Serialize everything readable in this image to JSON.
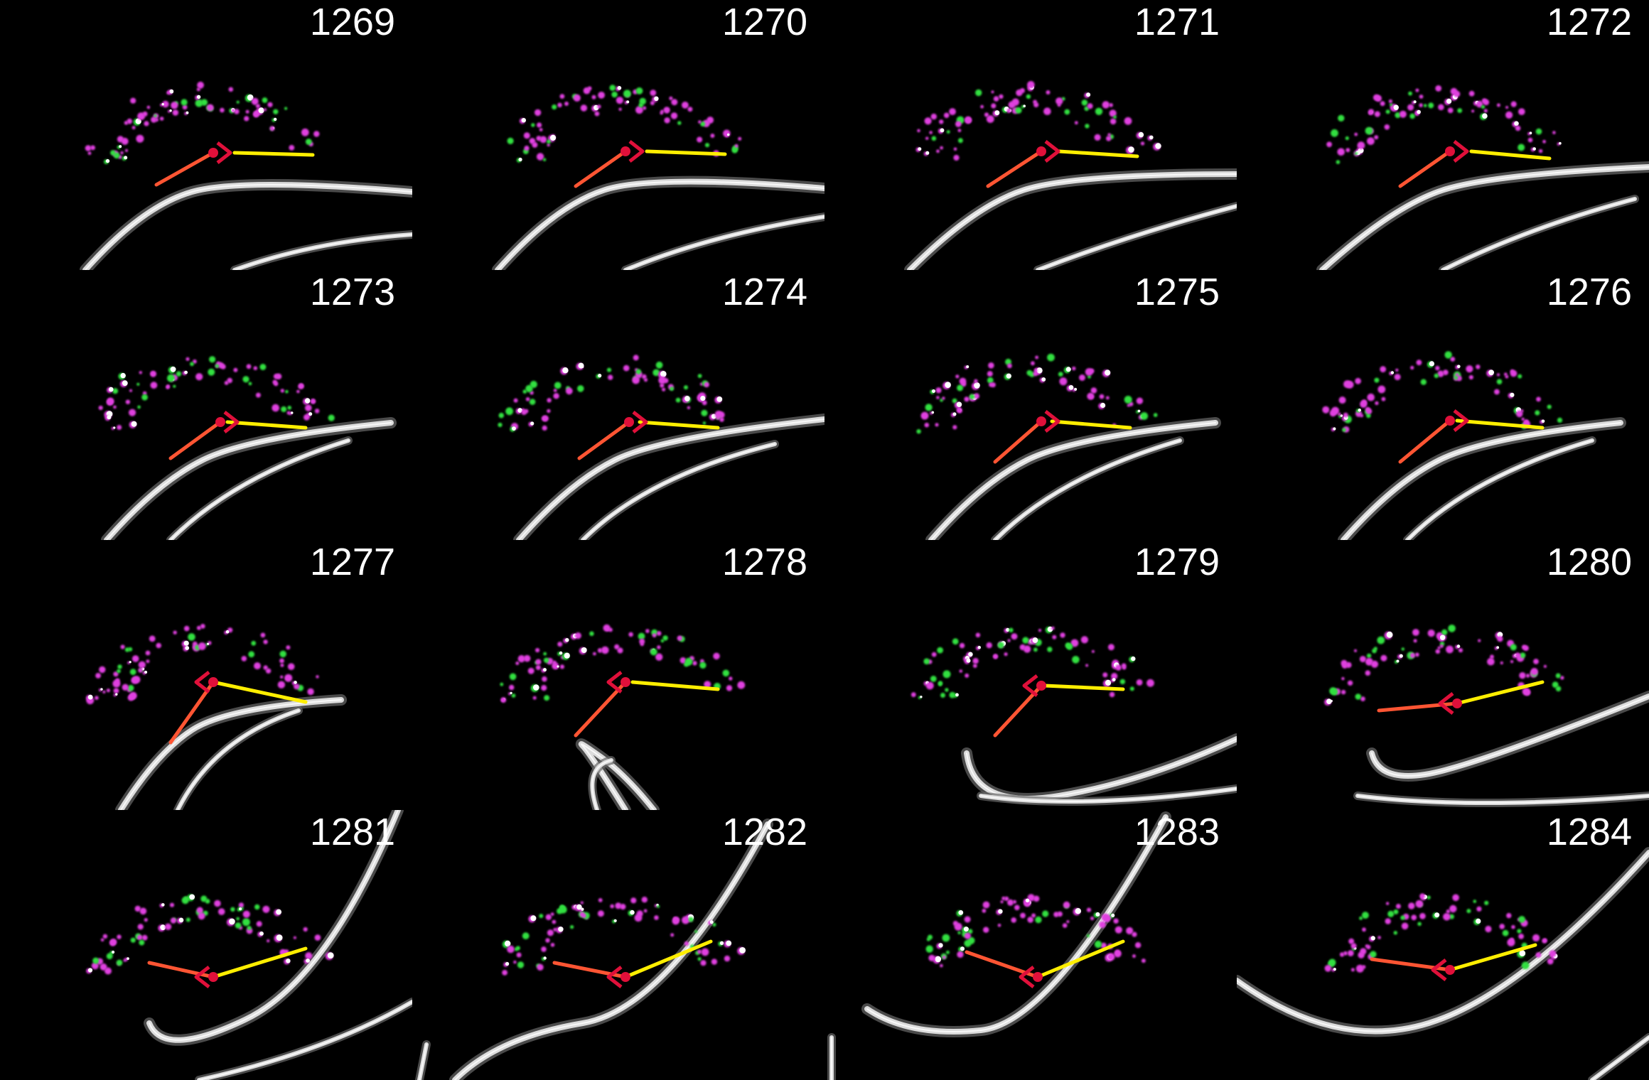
{
  "frames": [
    {
      "label": "1269"
    },
    {
      "label": "1270"
    },
    {
      "label": "1271"
    },
    {
      "label": "1272"
    },
    {
      "label": "1273"
    },
    {
      "label": "1274"
    },
    {
      "label": "1275"
    },
    {
      "label": "1276"
    },
    {
      "label": "1277"
    },
    {
      "label": "1278"
    },
    {
      "label": "1279"
    },
    {
      "label": "1280"
    },
    {
      "label": "1281"
    },
    {
      "label": "1282"
    },
    {
      "label": "1283"
    },
    {
      "label": "1284"
    }
  ],
  "colors": {
    "background": "#000000",
    "label": "#ffffff",
    "magenta_cells": "#e040e0",
    "green_cells": "#30e040",
    "fiber": "#dcdcdc",
    "yellow_line": "#ffee00",
    "orange_line": "#ff5533",
    "red_marker": "#e0103a"
  }
}
